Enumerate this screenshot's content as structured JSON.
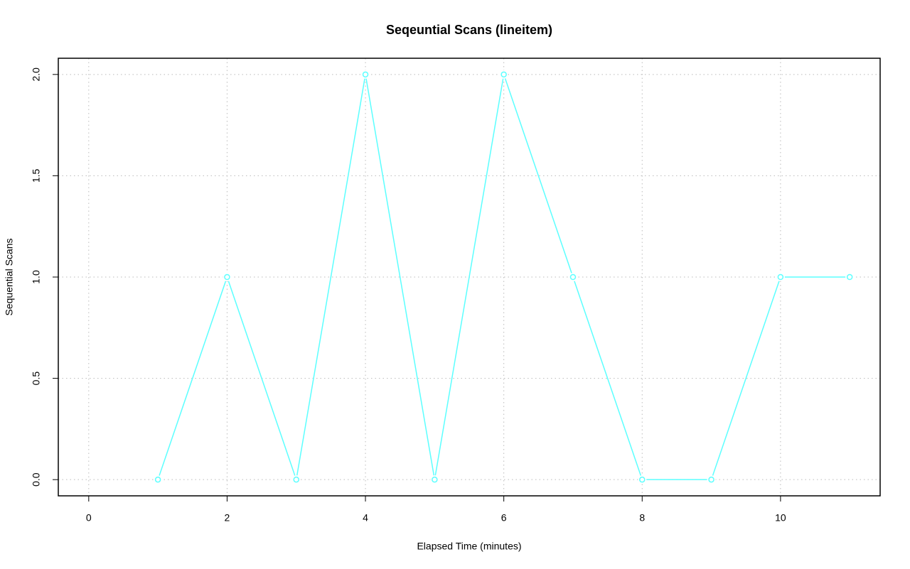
{
  "chart_data": {
    "type": "line",
    "title": "Seqeuntial Scans (lineitem)",
    "x_label": "Elapsed Time (minutes)",
    "y_label": "Sequential Scans",
    "x": [
      1,
      2,
      3,
      4,
      5,
      6,
      7,
      8,
      9,
      10,
      11
    ],
    "series": [
      {
        "name": "Sequential Scans",
        "color": "#5cffff",
        "values": [
          0,
          1,
          0,
          2,
          0,
          2,
          1,
          0,
          0,
          1,
          1
        ]
      }
    ],
    "xlim": [
      -0.44,
      11.44
    ],
    "ylim": [
      -0.08,
      2.08
    ],
    "xticks": [
      0,
      2,
      4,
      6,
      8,
      10
    ],
    "yticks": [
      {
        "value": 0,
        "label": "0.0"
      },
      0.5,
      {
        "value": 1,
        "label": "1.0"
      },
      1.5,
      {
        "value": 2,
        "label": "2.0"
      }
    ],
    "grid": true,
    "markers": true
  }
}
